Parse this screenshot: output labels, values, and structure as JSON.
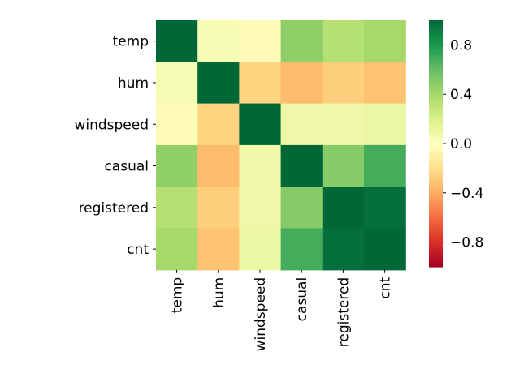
{
  "chart_data": {
    "type": "heatmap",
    "title": "",
    "xlabel": "",
    "ylabel": "",
    "row_labels": [
      "temp",
      "hum",
      "windspeed",
      "casual",
      "registered",
      "cnt"
    ],
    "col_labels": [
      "temp",
      "hum",
      "windspeed",
      "casual",
      "registered",
      "cnt"
    ],
    "values": [
      [
        1.0,
        0.04,
        -0.02,
        0.47,
        0.34,
        0.4
      ],
      [
        0.04,
        1.0,
        -0.25,
        -0.35,
        -0.27,
        -0.32
      ],
      [
        -0.02,
        -0.25,
        1.0,
        0.09,
        0.09,
        0.1
      ],
      [
        0.47,
        -0.35,
        0.09,
        1.0,
        0.5,
        0.69
      ],
      [
        0.34,
        -0.27,
        0.09,
        0.5,
        1.0,
        0.97
      ],
      [
        0.4,
        -0.32,
        0.1,
        0.69,
        0.97,
        1.0
      ]
    ],
    "colormap": "RdYlGn",
    "vmin": -1,
    "vmax": 1,
    "colorbar_ticks": [
      "0.8",
      "0.4",
      "0.0",
      "−0.4",
      "−0.8"
    ],
    "colorbar_tick_values": [
      0.8,
      0.4,
      0.0,
      -0.4,
      -0.8
    ],
    "grid": false,
    "legend": "colorbar-right"
  }
}
